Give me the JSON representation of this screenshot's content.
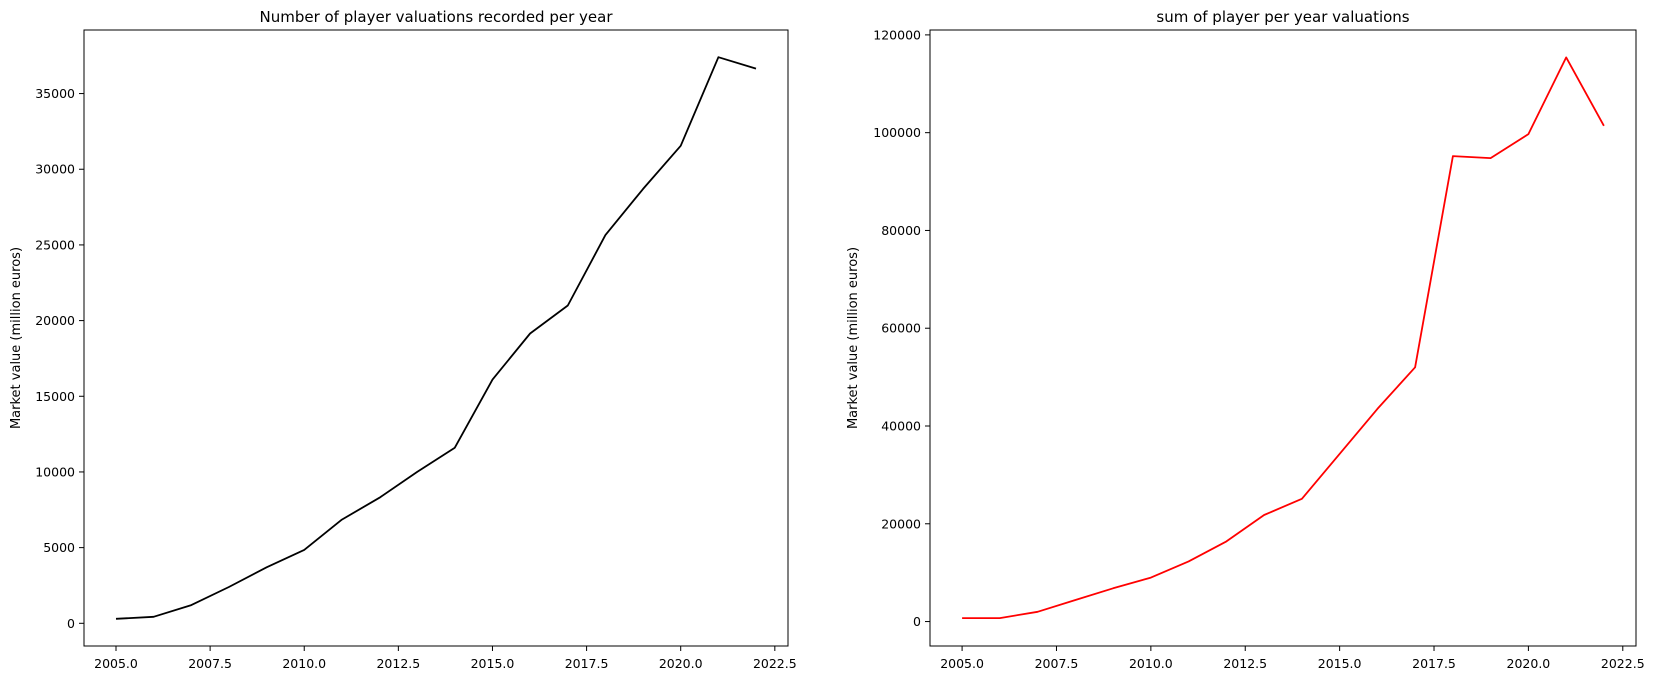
{
  "chart_data": [
    {
      "type": "line",
      "title": "Number of player valuations recorded per year",
      "xlabel": "",
      "ylabel": "Market value (million euros)",
      "color": "#000000",
      "x": [
        2005,
        2006,
        2007,
        2008,
        2009,
        2010,
        2011,
        2012,
        2013,
        2014,
        2015,
        2016,
        2017,
        2018,
        2019,
        2020,
        2021,
        2022
      ],
      "values": [
        300,
        430,
        1200,
        2400,
        3700,
        4850,
        6850,
        8300,
        10000,
        11600,
        16100,
        19150,
        21000,
        25650,
        28700,
        31550,
        37400,
        36650
      ],
      "xlim": [
        2004.15,
        2022.85
      ],
      "ylim": [
        -1500,
        39200
      ],
      "xticks": [
        "2005.0",
        "2007.5",
        "2010.0",
        "2012.5",
        "2015.0",
        "2017.5",
        "2020.0",
        "2022.5"
      ],
      "yticks": [
        "0",
        "5000",
        "10000",
        "15000",
        "20000",
        "25000",
        "30000",
        "35000"
      ],
      "grid": false
    },
    {
      "type": "line",
      "title": "sum of player per year valuations",
      "xlabel": "",
      "ylabel": "Market value (million euros)",
      "color": "#ff0000",
      "x": [
        2005,
        2006,
        2007,
        2008,
        2009,
        2010,
        2011,
        2012,
        2013,
        2014,
        2015,
        2016,
        2017,
        2018,
        2019,
        2020,
        2021,
        2022
      ],
      "values": [
        700,
        700,
        2000,
        4400,
        6800,
        9000,
        12300,
        16400,
        21800,
        25100,
        34300,
        43500,
        52000,
        95200,
        94800,
        99700,
        115400,
        101400
      ],
      "xlim": [
        2004.15,
        2022.85
      ],
      "ylim": [
        -5000,
        121000
      ],
      "xticks": [
        "2005.0",
        "2007.5",
        "2010.0",
        "2012.5",
        "2015.0",
        "2017.5",
        "2020.0",
        "2022.5"
      ],
      "yticks": [
        "0",
        "20000",
        "40000",
        "60000",
        "80000",
        "100000",
        "120000"
      ],
      "grid": false
    }
  ]
}
